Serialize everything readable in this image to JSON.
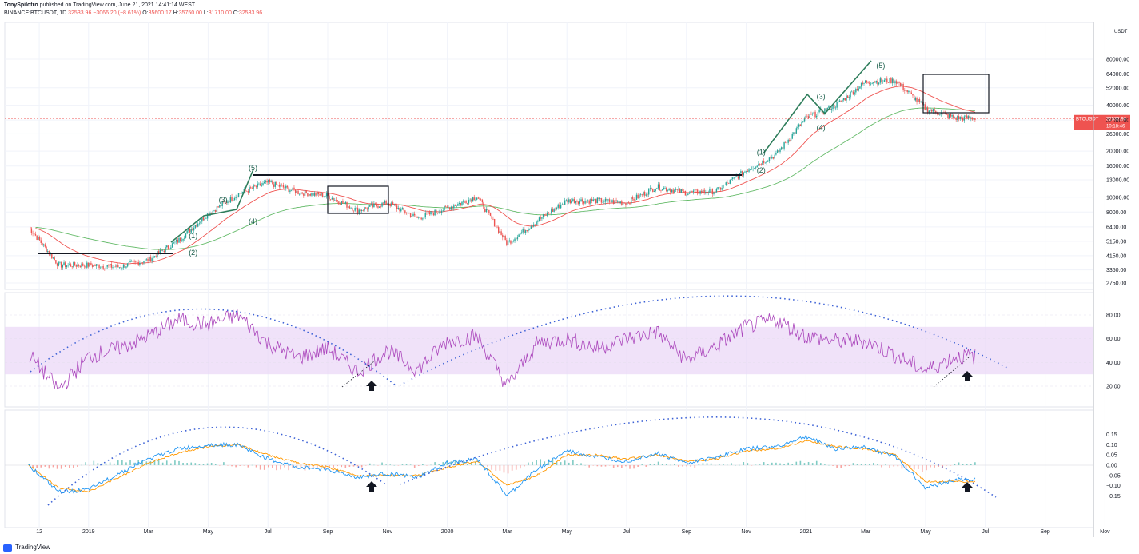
{
  "header": {
    "publisher": "TonySpilotro",
    "published_text": "published on TradingView.com, June 21, 2021 14:41:14 WEST",
    "symbol_line": "BINANCE:BTCUSDT, 1D",
    "last": "32533.96",
    "change": "−3066.20 (−8.61%)",
    "open_label": "O:",
    "open": "35600.17",
    "high_label": "H:",
    "high": "35750.00",
    "low_label": "L:",
    "low": "31710.00",
    "close_label": "C:",
    "close": "32533.96"
  },
  "footer": {
    "brand": "TradingView"
  },
  "colors": {
    "up": "#26a69a",
    "down": "#ef5350",
    "ema_fast": "#ef5350",
    "ema_slow": "#66bb6a",
    "rsi": "#ab47bc",
    "rsi_band": "#e9d5f7",
    "macd": "#2196f3",
    "signal": "#ff9800",
    "trend_dots": "#3d62d6",
    "price_tag": "#ef5350",
    "text": "#131722"
  },
  "chart_data": [
    {
      "type": "line",
      "title": "",
      "scale": "log",
      "y_axis_unit": "USDT",
      "price_tag": {
        "label": "BTCUSDT",
        "value": "32533.96",
        "countdown": "10:18:46"
      },
      "y_ticks": [
        "80000.00",
        "64000.00",
        "52000.00",
        "40000.00",
        "32000.00",
        "26000.00",
        "20000.00",
        "16000.00",
        "13000.00",
        "10000.00",
        "8000.00",
        "6400.00",
        "5150.00",
        "4150.00",
        "3350.00",
        "2750.00"
      ],
      "x_ticks": [
        "12",
        "2019",
        "Mar",
        "May",
        "Jul",
        "Sep",
        "Nov",
        "2020",
        "Mar",
        "May",
        "Jul",
        "Sep",
        "Nov",
        "2021",
        "Mar",
        "May",
        "Jul",
        "Sep",
        "Nov"
      ],
      "x": [
        "2018-11",
        "2018-12",
        "2019-01",
        "2019-02",
        "2019-03",
        "2019-04",
        "2019-05",
        "2019-06",
        "2019-07",
        "2019-08",
        "2019-09",
        "2019-10",
        "2019-11",
        "2019-12",
        "2020-01",
        "2020-02",
        "2020-03",
        "2020-04",
        "2020-05",
        "2020-06",
        "2020-07",
        "2020-08",
        "2020-09",
        "2020-10",
        "2020-11",
        "2020-12",
        "2021-01",
        "2021-02",
        "2021-03",
        "2021-04",
        "2021-05",
        "2021-06"
      ],
      "series": [
        {
          "values": [
            6400,
            3600,
            3600,
            3500,
            3900,
            5200,
            7800,
            10500,
            12500,
            10800,
            10200,
            8200,
            9200,
            7300,
            8500,
            10100,
            5000,
            7000,
            9500,
            9500,
            9200,
            11700,
            10700,
            11000,
            15000,
            19000,
            33000,
            40000,
            57000,
            58000,
            38000,
            33000
          ]
        }
      ],
      "wave_labels": [
        {
          "label": "(1)",
          "x": "2019-04",
          "y": 5400
        },
        {
          "label": "(2)",
          "x": "2019-04",
          "y": 4200
        },
        {
          "label": "(3)",
          "x": "2019-05",
          "y": 9300
        },
        {
          "label": "(4)",
          "x": "2019-06",
          "y": 6700
        },
        {
          "label": "(5)",
          "x": "2019-06",
          "y": 15000
        },
        {
          "label": "(1)",
          "x": "2020-11",
          "y": 19000
        },
        {
          "label": "(2)",
          "x": "2020-11",
          "y": 14500
        },
        {
          "label": "(3)",
          "x": "2021-01",
          "y": 44000
        },
        {
          "label": "(4)",
          "x": "2021-01",
          "y": 27500
        },
        {
          "label": "(5)",
          "x": "2021-03",
          "y": 70000
        }
      ]
    },
    {
      "type": "line",
      "title": "",
      "y_ticks": [
        "80.00",
        "60.00",
        "40.00",
        "20.00"
      ],
      "band": [
        30,
        70
      ],
      "series": [
        {
          "values": [
            47,
            17,
            45,
            52,
            62,
            76,
            72,
            80,
            56,
            44,
            52,
            32,
            50,
            34,
            58,
            62,
            20,
            56,
            60,
            52,
            60,
            66,
            42,
            54,
            70,
            76,
            62,
            58,
            58,
            46,
            33,
            45
          ]
        }
      ]
    },
    {
      "type": "line",
      "title": "",
      "y_ticks": [
        "0.15",
        "0.10",
        "0.05",
        "0.00",
        "−0.05",
        "−0.10",
        "−0.15"
      ],
      "series": [
        {
          "values": [
            0.0,
            -0.13,
            -0.12,
            -0.04,
            0.03,
            0.08,
            0.1,
            0.1,
            0.03,
            -0.01,
            -0.02,
            -0.06,
            -0.04,
            -0.06,
            0.01,
            0.03,
            -0.15,
            -0.02,
            0.07,
            0.04,
            0.02,
            0.06,
            0.01,
            0.04,
            0.08,
            0.09,
            0.14,
            0.08,
            0.09,
            0.04,
            -0.11,
            -0.07
          ]
        },
        {
          "values": [
            0.0,
            -0.11,
            -0.13,
            -0.06,
            0.01,
            0.06,
            0.09,
            0.1,
            0.05,
            0.01,
            -0.01,
            -0.05,
            -0.05,
            -0.05,
            -0.01,
            0.02,
            -0.1,
            -0.05,
            0.05,
            0.05,
            0.03,
            0.05,
            0.02,
            0.03,
            0.07,
            0.08,
            0.12,
            0.09,
            0.08,
            0.05,
            -0.08,
            -0.08
          ]
        }
      ]
    }
  ]
}
